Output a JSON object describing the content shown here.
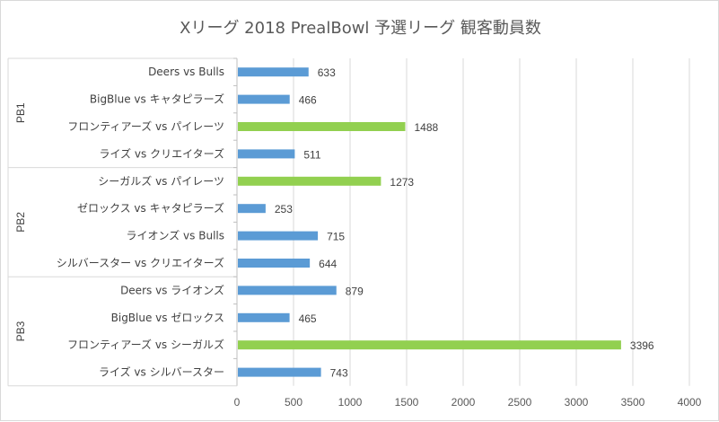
{
  "chart_data": {
    "type": "bar",
    "orientation": "horizontal",
    "title": "Xリーグ 2018 PrealBowl 予選リーグ 観客動員数",
    "xlim": [
      0,
      4000
    ],
    "xticks": [
      0,
      500,
      1000,
      1500,
      2000,
      2500,
      3000,
      3500,
      4000
    ],
    "grid": true,
    "highlight_color": "#92D050",
    "default_color": "#5B9BD5",
    "groups": [
      {
        "name": "PB1",
        "items": [
          {
            "label": "Deers vs Bulls",
            "value": 633,
            "highlight": false
          },
          {
            "label": "BigBlue vs キャタピラーズ",
            "value": 466,
            "highlight": false
          },
          {
            "label": "フロンティアーズ vs パイレーツ",
            "value": 1488,
            "highlight": true
          },
          {
            "label": "ライズ vs クリエイターズ",
            "value": 511,
            "highlight": false
          }
        ]
      },
      {
        "name": "PB2",
        "items": [
          {
            "label": "シーガルズ vs パイレーツ",
            "value": 1273,
            "highlight": true
          },
          {
            "label": "ゼロックス vs キャタピラーズ",
            "value": 253,
            "highlight": false
          },
          {
            "label": "ライオンズ vs Bulls",
            "value": 715,
            "highlight": false
          },
          {
            "label": "シルバースター vs クリエイターズ",
            "value": 644,
            "highlight": false
          }
        ]
      },
      {
        "name": "PB3",
        "items": [
          {
            "label": "Deers vs ライオンズ",
            "value": 879,
            "highlight": false
          },
          {
            "label": "BigBlue vs ゼロックス",
            "value": 465,
            "highlight": false
          },
          {
            "label": "フロンティアーズ vs シーガルズ",
            "value": 3396,
            "highlight": true
          },
          {
            "label": "ライズ vs シルバースター",
            "value": 743,
            "highlight": false
          }
        ]
      }
    ]
  }
}
